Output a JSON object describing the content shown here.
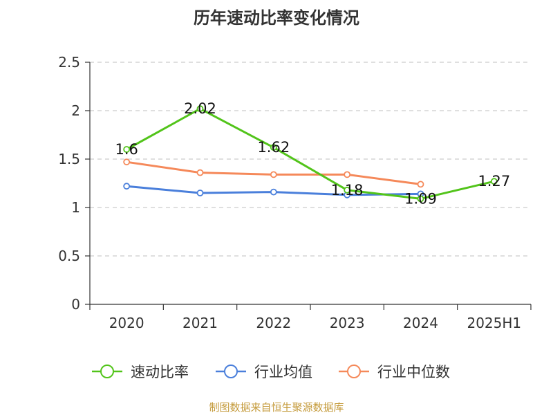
{
  "chart_data": {
    "type": "line",
    "title": "历年速动比率变化情况",
    "categories": [
      "2020",
      "2021",
      "2022",
      "2023",
      "2024",
      "2025H1"
    ],
    "ylim": [
      0,
      2.5
    ],
    "yticks": [
      0,
      0.5,
      1,
      1.5,
      2,
      2.5
    ],
    "ytick_labels": [
      "0",
      "0.5",
      "1",
      "1.5",
      "2",
      "2.5"
    ],
    "grid": true,
    "legend_position": "bottom",
    "series": [
      {
        "name": "速动比率",
        "color": "#52c41a",
        "values": [
          1.6,
          2.02,
          1.62,
          1.18,
          1.09,
          1.27
        ],
        "labels": [
          "1.6",
          "2.02",
          "1.62",
          "1.18",
          "1.09",
          "1.27"
        ]
      },
      {
        "name": "行业均值",
        "color": "#4a7fdb",
        "values": [
          1.22,
          1.15,
          1.16,
          1.13,
          1.14,
          null
        ]
      },
      {
        "name": "行业中位数",
        "color": "#f5895a",
        "values": [
          1.47,
          1.36,
          1.34,
          1.34,
          1.24,
          null
        ]
      }
    ]
  },
  "source": "制图数据来自恒生聚源数据库"
}
